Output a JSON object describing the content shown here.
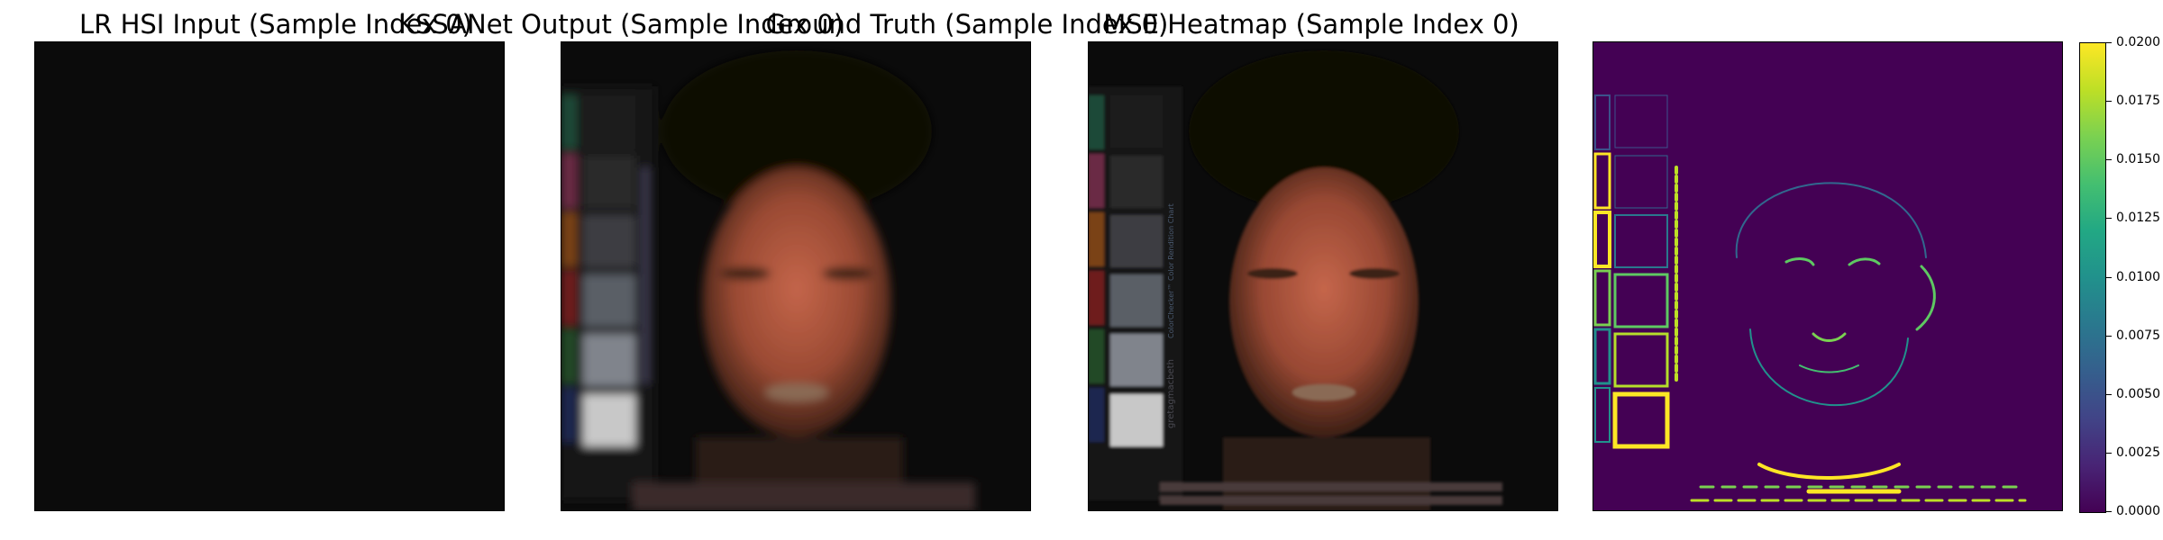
{
  "panels": [
    {
      "title": "LR HSI Input (Sample Index 0)"
    },
    {
      "title": "KSSANet Output (Sample Index 0)"
    },
    {
      "title": "Ground Truth (Sample Index 0)"
    },
    {
      "title": "MSE Heatmap (Sample Index 0)"
    }
  ],
  "chart_title_texts": {
    "gt_chart_label": "ColorChecker™ Color Rendition Chart",
    "gt_chart_brand": "gretagmacbeth"
  },
  "colorbar": {
    "colormap": "viridis",
    "range": [
      0.0,
      0.02
    ],
    "ticks": [
      "0.0200",
      "0.0175",
      "0.0150",
      "0.0125",
      "0.0100",
      "0.0075",
      "0.0050",
      "0.0025",
      "0.0000"
    ]
  },
  "colors": {
    "skin": "#b85a3c",
    "background": "#0b0b0b",
    "heatmap_background": "#440154",
    "heatmap_high": "#fde725"
  }
}
